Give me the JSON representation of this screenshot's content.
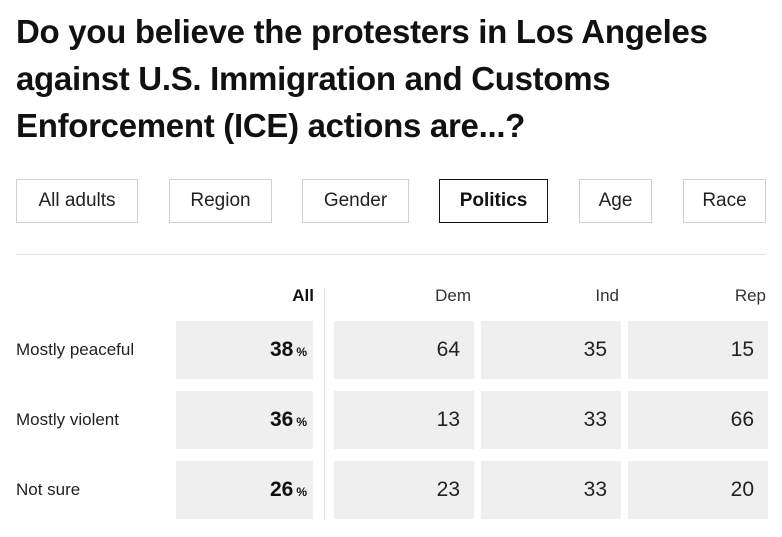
{
  "title": "Do you believe the protesters in Los Angeles against U.S. Immigration and Customs Enforcement (ICE) actions are...?",
  "tabs": [
    {
      "label": "All adults",
      "active": false
    },
    {
      "label": "Region",
      "active": false
    },
    {
      "label": "Gender",
      "active": false
    },
    {
      "label": "Politics",
      "active": true
    },
    {
      "label": "Age",
      "active": false
    },
    {
      "label": "Race",
      "active": false
    }
  ],
  "percent_symbol": "%",
  "chart_data": {
    "type": "table",
    "title": "Do you believe the protesters in Los Angeles against U.S. Immigration and Customs Enforcement (ICE) actions are...?",
    "columns": [
      "All",
      "Dem",
      "Ind",
      "Rep"
    ],
    "rows": [
      {
        "label": "Mostly peaceful",
        "values": [
          38,
          64,
          35,
          15
        ]
      },
      {
        "label": "Mostly violent",
        "values": [
          36,
          13,
          33,
          66
        ]
      },
      {
        "label": "Not sure",
        "values": [
          26,
          23,
          33,
          20
        ]
      }
    ],
    "unit": "%"
  }
}
